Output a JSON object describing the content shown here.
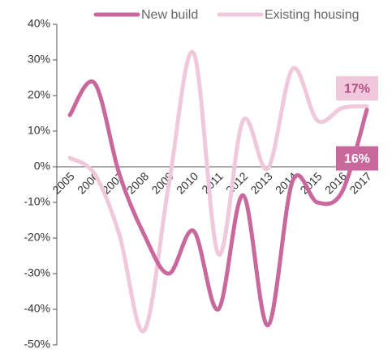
{
  "chart_data": {
    "type": "line",
    "x": [
      "2005",
      "2006",
      "2007",
      "2008",
      "2009",
      "2010",
      "2011",
      "2012",
      "2013",
      "2014",
      "2015",
      "2016",
      "2017"
    ],
    "series": [
      {
        "name": "New build",
        "color": "#c8689c",
        "values": [
          14.5,
          23.5,
          -2,
          -19,
          -30,
          -18,
          -40,
          -8,
          -44.5,
          -4,
          -10,
          -7,
          16
        ],
        "value_labels": [
          null,
          null,
          null,
          null,
          null,
          null,
          null,
          null,
          null,
          null,
          null,
          null,
          "16%"
        ]
      },
      {
        "name": "Existing housing",
        "color": "#f0c8db",
        "values": [
          2.5,
          -2,
          -19,
          -46,
          -5,
          32,
          -24.5,
          13,
          -0.5,
          27.5,
          13,
          16.5,
          17
        ],
        "value_labels": [
          null,
          null,
          null,
          null,
          null,
          null,
          null,
          null,
          null,
          null,
          null,
          null,
          "17%"
        ]
      }
    ],
    "ylim": [
      -50,
      40
    ],
    "yticks": [
      {
        "value": 40,
        "label": "40%"
      },
      {
        "value": 30,
        "label": "30%"
      },
      {
        "value": 20,
        "label": "20%"
      },
      {
        "value": 10,
        "label": "10%"
      },
      {
        "value": 0,
        "label": "0%"
      },
      {
        "value": -10,
        "label": "-10%"
      },
      {
        "value": -20,
        "label": "-20%"
      },
      {
        "value": -30,
        "label": "-30%"
      },
      {
        "value": -40,
        "label": "-40%"
      },
      {
        "value": -50,
        "label": "-50%"
      }
    ],
    "legend": "top"
  }
}
